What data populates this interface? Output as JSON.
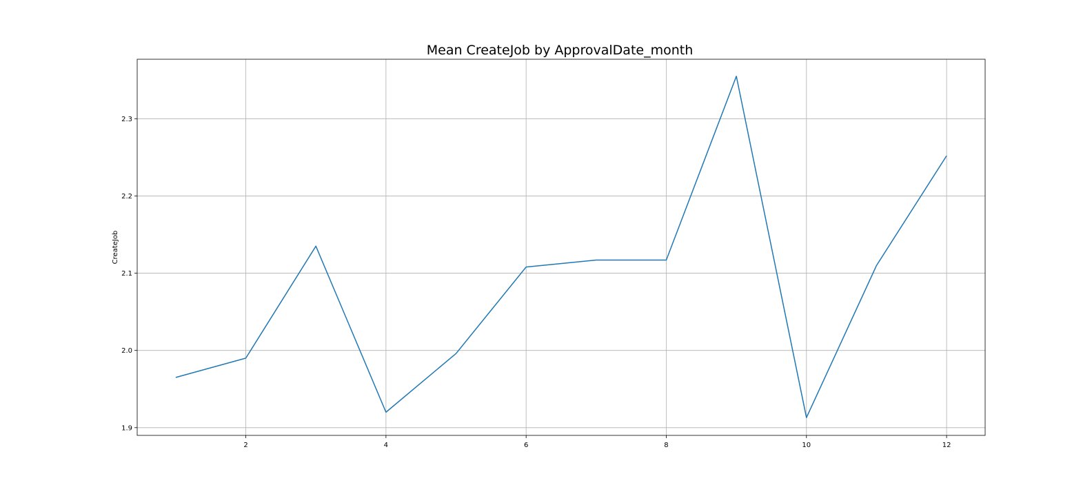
{
  "chart_data": {
    "type": "line",
    "title": "Mean CreateJob by ApprovalDate_month",
    "xlabel": "",
    "ylabel": "CreateJob",
    "x": [
      1,
      2,
      3,
      4,
      5,
      6,
      7,
      8,
      9,
      10,
      11,
      12
    ],
    "series": [
      {
        "values": [
          1.965,
          1.99,
          2.135,
          1.92,
          1.996,
          2.108,
          2.117,
          2.117,
          2.355,
          1.913,
          2.11,
          2.252
        ],
        "color": "#1f77b4"
      }
    ],
    "xlim": [
      0.45,
      12.55
    ],
    "ylim": [
      1.89,
      2.377
    ],
    "xticks": [
      2,
      4,
      6,
      8,
      10,
      12
    ],
    "yticks": [
      1.9,
      2.0,
      2.1,
      2.2,
      2.3
    ],
    "xtick_labels": [
      "2",
      "4",
      "6",
      "8",
      "10",
      "12"
    ],
    "ytick_labels": [
      "1.9",
      "2.0",
      "2.1",
      "2.2",
      "2.3"
    ],
    "grid": true,
    "legend": "none"
  }
}
